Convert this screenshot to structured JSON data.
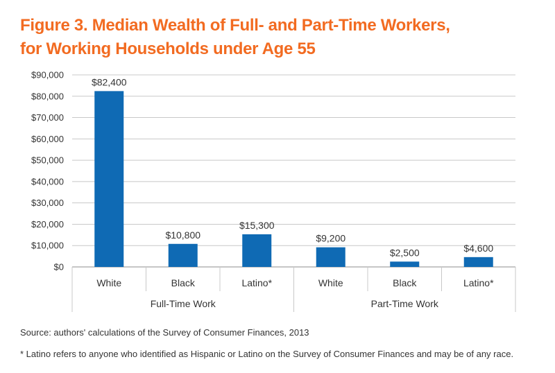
{
  "chart_data": {
    "type": "bar",
    "title_lines": [
      "Figure 3. Median Wealth of Full- and Part-Time Workers,",
      "for Working Households under Age 55"
    ],
    "groups": [
      {
        "label": "Full-Time Work",
        "categories": [
          "White",
          "Black",
          "Latino*"
        ],
        "values": [
          82400,
          10800,
          15300
        ],
        "value_labels": [
          "$82,400",
          "$10,800",
          "$15,300"
        ]
      },
      {
        "label": "Part-Time Work",
        "categories": [
          "White",
          "Black",
          "Latino*"
        ],
        "values": [
          9200,
          2500,
          4600
        ],
        "value_labels": [
          "$9,200",
          "$2,500",
          "$4,600"
        ]
      }
    ],
    "y_ticks": [
      0,
      10000,
      20000,
      30000,
      40000,
      50000,
      60000,
      70000,
      80000,
      90000
    ],
    "y_tick_labels": [
      "$0",
      "$10,000",
      "$20,000",
      "$30,000",
      "$40,000",
      "$50,000",
      "$60,000",
      "$70,000",
      "$80,000",
      "$90,000"
    ],
    "ylim": [
      0,
      90000
    ],
    "grid": true,
    "legend": "none",
    "bar_color": "#0f6ab4"
  },
  "source": "Source: authors' calculations of the Survey of Consumer Finances, 2013",
  "footnote": "* Latino refers to anyone who identified as Hispanic or Latino on the Survey of Consumer Finances and may be of any race."
}
